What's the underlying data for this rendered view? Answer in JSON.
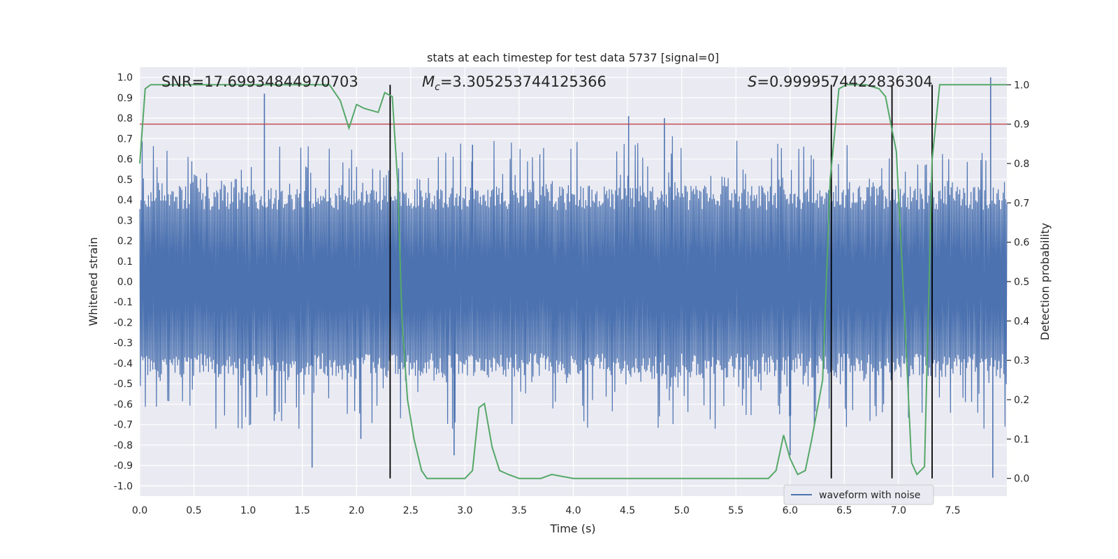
{
  "chart_data": {
    "type": "line",
    "title": "stats at each timestep for test data 5737 [signal=0]",
    "xlabel": "Time (s)",
    "ylabel": "Whitened strain",
    "y2label": "Detection probability",
    "xlim": [
      0.0,
      8.0
    ],
    "ylim": [
      -1.05,
      1.05
    ],
    "y2lim": [
      -0.045,
      1.045
    ],
    "x_ticks": [
      "0.0",
      "0.5",
      "1.0",
      "1.5",
      "2.0",
      "2.5",
      "3.0",
      "3.5",
      "4.0",
      "4.5",
      "5.0",
      "5.5",
      "6.0",
      "6.5",
      "7.0",
      "7.5"
    ],
    "y_ticks": [
      "1.0",
      "0.9",
      "0.8",
      "0.7",
      "0.6",
      "0.5",
      "0.4",
      "0.3",
      "0.2",
      "0.1",
      "0.0",
      "-0.1",
      "-0.2",
      "-0.3",
      "-0.4",
      "-0.5",
      "-0.6",
      "-0.7",
      "-0.8",
      "-0.9",
      "-1.0"
    ],
    "y2_ticks": [
      "1.0",
      "0.9",
      "0.8",
      "0.7",
      "0.6",
      "0.5",
      "0.4",
      "0.3",
      "0.2",
      "0.1",
      "0.0"
    ],
    "grid": true,
    "legend": {
      "placement": "lower-right",
      "entries": [
        {
          "name": "waveform with noise",
          "color": "#4c72b0"
        }
      ]
    },
    "annotations": {
      "snr": "SNR=17.69934844970703",
      "mc_symbol": "M",
      "mc_sub": "c",
      "mc_value": "=3.305253744125366",
      "s_symbol": "S",
      "s_value": "=0.9999574422836304"
    },
    "threshold_line": {
      "axis": "y2",
      "value": 0.9,
      "color": "#c44e52"
    },
    "vertical_lines_x": [
      2.31,
      6.38,
      6.94,
      7.31
    ],
    "waveform": {
      "name": "waveform with noise",
      "color": "#4c72b0",
      "band_amplitude": 0.35,
      "peak_amplitude": 1.0,
      "spikes": [
        {
          "x": 1.15,
          "y": 0.92
        },
        {
          "x": 1.59,
          "y": -0.91
        },
        {
          "x": 2.04,
          "y": -0.77
        },
        {
          "x": 2.9,
          "y": -0.85
        },
        {
          "x": 3.07,
          "y": 0.67
        },
        {
          "x": 4.51,
          "y": 0.81
        },
        {
          "x": 4.84,
          "y": 0.8
        },
        {
          "x": 6.0,
          "y": -0.85
        },
        {
          "x": 7.85,
          "y": 1.0
        },
        {
          "x": 7.87,
          "y": -0.96
        }
      ]
    },
    "probability": {
      "color": "#55a868",
      "x": [
        0.0,
        0.05,
        0.1,
        0.2,
        0.4,
        0.6,
        0.8,
        1.0,
        1.2,
        1.4,
        1.6,
        1.75,
        1.85,
        1.93,
        2.0,
        2.07,
        2.2,
        2.26,
        2.33,
        2.38,
        2.42,
        2.47,
        2.53,
        2.6,
        2.65,
        2.8,
        3.0,
        3.07,
        3.13,
        3.18,
        3.25,
        3.32,
        3.4,
        3.5,
        3.7,
        3.8,
        4.0,
        4.3,
        4.6,
        5.0,
        5.4,
        5.8,
        5.87,
        5.94,
        6.0,
        6.07,
        6.14,
        6.2,
        6.3,
        6.37,
        6.45,
        6.52,
        6.6,
        6.7,
        6.82,
        6.88,
        6.93,
        6.98,
        7.05,
        7.12,
        7.17,
        7.24,
        7.31,
        7.38,
        7.5,
        7.75,
        8.0
      ],
      "y": [
        0.8,
        0.99,
        1.0,
        1.0,
        1.0,
        1.0,
        1.0,
        1.0,
        1.0,
        1.0,
        1.0,
        1.0,
        0.96,
        0.89,
        0.95,
        0.94,
        0.93,
        0.98,
        0.97,
        0.75,
        0.4,
        0.2,
        0.1,
        0.02,
        0.0,
        0.0,
        0.0,
        0.02,
        0.18,
        0.19,
        0.08,
        0.02,
        0.01,
        0.0,
        0.0,
        0.01,
        0.0,
        0.0,
        0.0,
        0.0,
        0.0,
        0.0,
        0.02,
        0.11,
        0.05,
        0.01,
        0.02,
        0.1,
        0.25,
        0.76,
        0.99,
        1.0,
        1.0,
        1.0,
        0.99,
        0.97,
        0.9,
        0.83,
        0.45,
        0.04,
        0.01,
        0.03,
        0.81,
        1.0,
        1.0,
        1.0,
        1.0
      ]
    }
  }
}
